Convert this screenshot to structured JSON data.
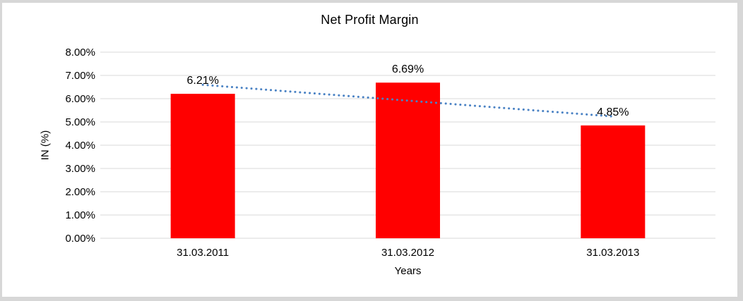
{
  "chart_data": {
    "type": "bar",
    "title": "Net Profit Margin",
    "categories": [
      "31.03.2011",
      "31.03.2012",
      "31.03.2013"
    ],
    "values": [
      6.21,
      6.69,
      4.85
    ],
    "value_labels": [
      "6.21%",
      "6.69%",
      "4.85%"
    ],
    "xlabel": "Years",
    "ylabel": "IN (%)",
    "ylim": [
      0,
      8
    ],
    "ytick_step": 1,
    "ytick_labels": [
      "0.00%",
      "1.00%",
      "2.00%",
      "3.00%",
      "4.00%",
      "5.00%",
      "6.00%",
      "7.00%",
      "8.00%"
    ],
    "grid": true,
    "legend": "none",
    "bar_color": "#ff0000",
    "grid_color": "#d9d9d9",
    "text_color": "#000000",
    "trendline": {
      "type": "linear",
      "style": "dotted",
      "color": "#4a82c4"
    }
  }
}
